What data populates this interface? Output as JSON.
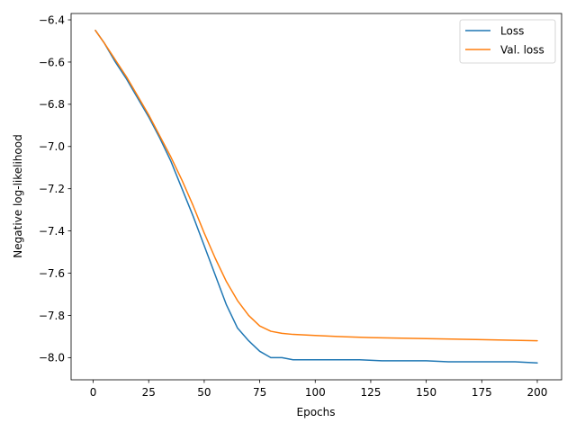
{
  "chart_data": {
    "type": "line",
    "title": "",
    "xlabel": "Epochs",
    "ylabel": "Negative log-likelihood",
    "xlim": [
      -9.95,
      210.95
    ],
    "ylim": [
      -8.105,
      -6.37
    ],
    "xticks": [
      0,
      25,
      50,
      75,
      100,
      125,
      150,
      175,
      200
    ],
    "yticks": [
      -8.0,
      -7.8,
      -7.6,
      -7.4,
      -7.2,
      -7.0,
      -6.8,
      -6.6,
      -6.4
    ],
    "xtick_labels": [
      "0",
      "25",
      "50",
      "75",
      "100",
      "125",
      "150",
      "175",
      "200"
    ],
    "ytick_labels": [
      "−8.0",
      "−7.8",
      "−7.6",
      "−7.4",
      "−7.2",
      "−7.0",
      "−6.8",
      "−6.6",
      "−6.4"
    ],
    "legend_position": "top-right",
    "grid": false,
    "series": [
      {
        "name": "Loss",
        "color": "#1f77b4",
        "x": [
          1,
          5,
          10,
          15,
          20,
          25,
          30,
          35,
          40,
          45,
          50,
          55,
          60,
          65,
          70,
          75,
          80,
          85,
          90,
          95,
          100,
          110,
          120,
          130,
          140,
          150,
          160,
          170,
          180,
          190,
          200
        ],
        "y": [
          -6.45,
          -6.51,
          -6.6,
          -6.68,
          -6.77,
          -6.86,
          -6.96,
          -7.07,
          -7.2,
          -7.33,
          -7.47,
          -7.61,
          -7.75,
          -7.86,
          -7.92,
          -7.97,
          -8.0,
          -8.0,
          -8.01,
          -8.01,
          -8.01,
          -8.01,
          -8.01,
          -8.015,
          -8.015,
          -8.015,
          -8.02,
          -8.02,
          -8.02,
          -8.02,
          -8.025
        ]
      },
      {
        "name": "Val. loss",
        "color": "#ff7f0e",
        "x": [
          1,
          5,
          10,
          15,
          20,
          25,
          30,
          35,
          40,
          45,
          50,
          55,
          60,
          65,
          70,
          75,
          80,
          85,
          90,
          100,
          110,
          125,
          150,
          175,
          200
        ],
        "y": [
          -6.45,
          -6.51,
          -6.59,
          -6.67,
          -6.76,
          -6.85,
          -6.95,
          -7.05,
          -7.16,
          -7.28,
          -7.41,
          -7.53,
          -7.64,
          -7.73,
          -7.8,
          -7.85,
          -7.875,
          -7.885,
          -7.89,
          -7.895,
          -7.9,
          -7.905,
          -7.91,
          -7.915,
          -7.92
        ]
      }
    ]
  }
}
